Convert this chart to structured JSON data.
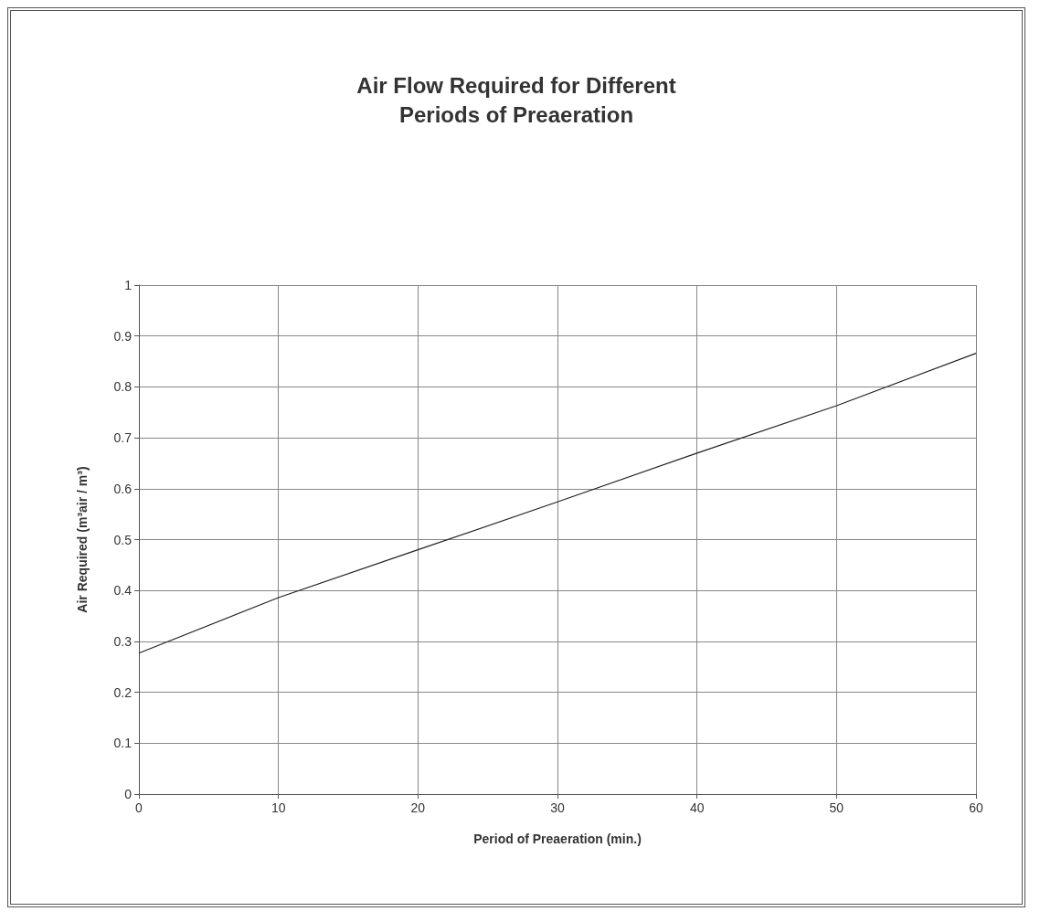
{
  "chart_data": {
    "type": "line",
    "title": "Air Flow Required for Different\nPeriods of Preaeration",
    "xlabel": "Period of Preaeration (min.)",
    "ylabel": "Air Required (m³air / m³)",
    "x": [
      0,
      10,
      20,
      30,
      40,
      50,
      60
    ],
    "series": [
      {
        "color": "#222222",
        "values": [
          0.277,
          0.386,
          0.48,
          0.574,
          0.67,
          0.763,
          0.866
        ]
      }
    ],
    "xlim": [
      0,
      60
    ],
    "xticks": [
      0,
      10,
      20,
      30,
      40,
      50,
      60
    ],
    "ylim": [
      0,
      1
    ],
    "yticks": [
      0,
      0.1,
      0.2,
      0.3,
      0.4,
      0.5,
      0.6,
      0.7,
      0.8,
      0.9,
      1
    ],
    "grid": true,
    "marker": "none",
    "line_style": "solid"
  }
}
